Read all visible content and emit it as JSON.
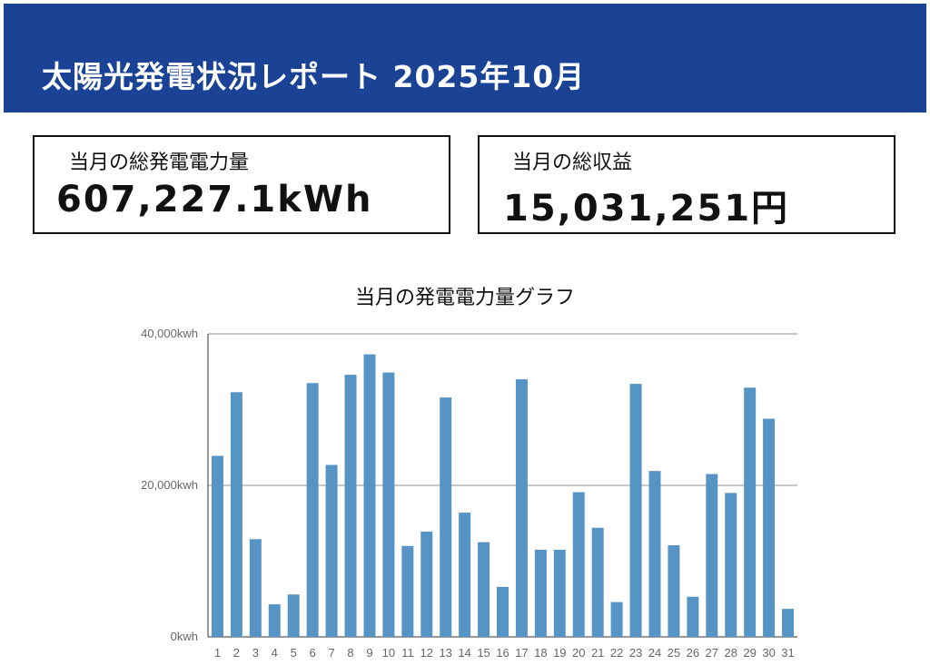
{
  "header": {
    "title": "太陽光発電状況レポート 2025年10月"
  },
  "summary": {
    "power": {
      "label": "当月の総発電電力量",
      "value": "607,227.1kWh"
    },
    "revenue": {
      "label": "当月の総収益",
      "value": "15,031,251円"
    }
  },
  "colors": {
    "header_bg": "#1a4396",
    "bar": "#5594c4",
    "grid": "#c8c8c8"
  },
  "chart_data": {
    "type": "bar",
    "title": "当月の発電電力量グラフ",
    "xlabel": "",
    "ylabel": "",
    "categories": [
      "1",
      "2",
      "3",
      "4",
      "5",
      "6",
      "7",
      "8",
      "9",
      "10",
      "11",
      "12",
      "13",
      "14",
      "15",
      "16",
      "17",
      "18",
      "19",
      "20",
      "21",
      "22",
      "23",
      "24",
      "25",
      "26",
      "27",
      "28",
      "29",
      "30",
      "31"
    ],
    "values": [
      23900,
      32300,
      12900,
      4300,
      5600,
      33500,
      22700,
      34600,
      37300,
      34900,
      12000,
      13900,
      31600,
      16400,
      12500,
      6600,
      34000,
      11500,
      11500,
      19100,
      14400,
      4600,
      33400,
      21900,
      12100,
      5300,
      21500,
      19000,
      32900,
      28800,
      3700
    ],
    "ylim": [
      0,
      40000
    ],
    "yticks": [
      {
        "value": 0,
        "label": "0kwh"
      },
      {
        "value": 20000,
        "label": "20,000kwh"
      },
      {
        "value": 40000,
        "label": "40,000kwh"
      }
    ],
    "grid": true,
    "legend": "none"
  }
}
